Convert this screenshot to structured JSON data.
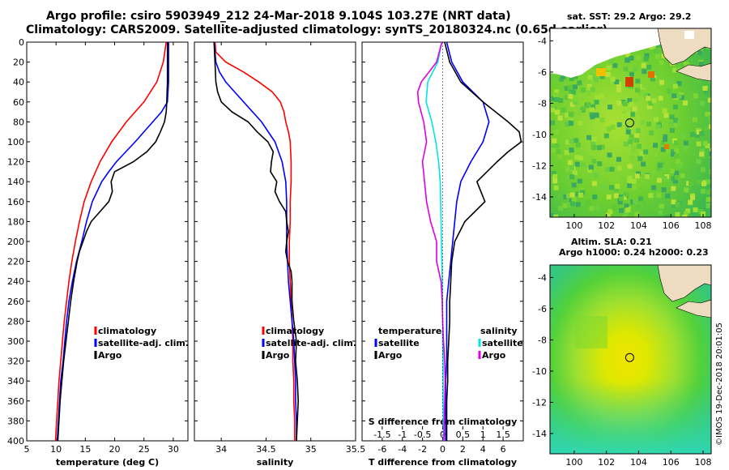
{
  "header": {
    "line1": "Argo profile: csiro 5903949_212 24-Mar-2018 9.104S 103.27E (NRT data)",
    "line2": "Climatology: CARS2009. Satellite-adjusted climatology: synTS_20180324.nc (0.65d earlier)"
  },
  "map1": {
    "title": "sat. SST: 29.2 Argo: 29.2",
    "xticks": [
      "100",
      "102",
      "104",
      "106",
      "108"
    ],
    "yticks": [
      "-4",
      "-6",
      "-8",
      "-10",
      "-12",
      "-14"
    ]
  },
  "map2": {
    "title1": "Altim. SLA: 0.21",
    "title2": "Argo h1000: 0.24 h2000: 0.23",
    "xticks": [
      "100",
      "102",
      "104",
      "106",
      "108"
    ],
    "yticks": [
      "-4",
      "-6",
      "-8",
      "-10",
      "-12",
      "-14"
    ]
  },
  "footer": {
    "credit": "©IMOS 19-Dec-2018 20:01:05"
  },
  "colors": {
    "climatology": "#ff0000",
    "satellite": "#0000ff",
    "argo": "#000000",
    "salinity_satellite": "#00e5e5",
    "salinity_argo": "#e000e0"
  },
  "chart_data": [
    {
      "type": "line",
      "id": "temperature",
      "xlabel": "temperature (deg C)",
      "ylabel": "",
      "xlim": [
        5,
        32.5
      ],
      "ylim": [
        400,
        0
      ],
      "xticks": [
        5,
        10,
        15,
        20,
        25,
        30
      ],
      "xticklabels": [
        "5",
        "10",
        "15",
        "20",
        "25",
        "30"
      ],
      "yticks": [
        0,
        20,
        40,
        60,
        80,
        100,
        120,
        140,
        160,
        180,
        200,
        220,
        240,
        260,
        280,
        300,
        320,
        340,
        360,
        380,
        400
      ],
      "legend": [
        "climatology",
        "satellite-adj. clim.",
        "Argo"
      ],
      "legend_position": "lower-right",
      "series": [
        {
          "name": "climatology",
          "color": "#ff0000",
          "depth": [
            0,
            20,
            40,
            60,
            80,
            100,
            120,
            140,
            160,
            180,
            200,
            220,
            240,
            260,
            280,
            300,
            320,
            340,
            360,
            380,
            400
          ],
          "values": [
            28.8,
            28.3,
            27.2,
            25.0,
            22.0,
            19.5,
            17.5,
            16.0,
            14.8,
            14.0,
            13.3,
            12.7,
            12.2,
            11.8,
            11.4,
            11.1,
            10.8,
            10.5,
            10.3,
            10.1,
            9.9
          ]
        },
        {
          "name": "satellite-adj. clim.",
          "color": "#0000ff",
          "depth": [
            0,
            20,
            40,
            60,
            70,
            80,
            100,
            120,
            130,
            140,
            160,
            180,
            200,
            220,
            240,
            260,
            280,
            300,
            320,
            340,
            360,
            380,
            400
          ],
          "values": [
            29.2,
            29.2,
            29.2,
            29.0,
            28.0,
            26.5,
            23.5,
            20.3,
            19.0,
            17.8,
            16.2,
            15.2,
            14.4,
            13.5,
            12.8,
            12.2,
            11.8,
            11.5,
            11.2,
            10.8,
            10.6,
            10.4,
            10.2
          ]
        },
        {
          "name": "Argo",
          "color": "#000000",
          "depth": [
            0,
            20,
            40,
            60,
            70,
            80,
            90,
            100,
            110,
            120,
            130,
            140,
            150,
            160,
            170,
            180,
            190,
            200,
            210,
            220,
            240,
            260,
            280,
            300,
            320,
            340,
            360,
            380,
            400
          ],
          "values": [
            29.0,
            29.0,
            29.0,
            28.9,
            28.8,
            28.5,
            27.8,
            27.0,
            25.5,
            23.2,
            20.0,
            19.4,
            19.6,
            19.0,
            17.5,
            16.0,
            15.2,
            14.6,
            14.0,
            13.6,
            13.0,
            12.5,
            12.1,
            11.7,
            11.3,
            11.0,
            10.7,
            10.5,
            10.3
          ]
        }
      ]
    },
    {
      "type": "line",
      "id": "salinity",
      "xlabel": "salinity",
      "xlim": [
        33.7,
        35.5
      ],
      "ylim": [
        400,
        0
      ],
      "xticks": [
        34,
        34.5,
        35,
        35.5
      ],
      "xticklabels": [
        "34",
        "34.5",
        "35",
        "35.5"
      ],
      "legend": [
        "climatology",
        "satellite-adj. clim.",
        "Argo"
      ],
      "legend_position": "lower-right",
      "series": [
        {
          "name": "climatology",
          "color": "#ff0000",
          "depth": [
            0,
            10,
            20,
            30,
            40,
            50,
            60,
            70,
            80,
            90,
            100,
            120,
            140,
            160,
            180,
            200,
            220,
            240,
            260,
            280,
            300,
            320,
            340,
            360,
            380,
            400
          ],
          "values": [
            33.93,
            33.94,
            34.05,
            34.25,
            34.42,
            34.57,
            34.66,
            34.7,
            34.72,
            34.75,
            34.77,
            34.78,
            34.78,
            34.77,
            34.77,
            34.76,
            34.76,
            34.77,
            34.78,
            34.79,
            34.8,
            34.8,
            34.81,
            34.81,
            34.82,
            34.82
          ]
        },
        {
          "name": "satellite-adj. clim.",
          "color": "#0000ff",
          "depth": [
            0,
            10,
            20,
            30,
            40,
            50,
            60,
            80,
            100,
            120,
            140,
            160,
            180,
            200,
            220,
            240,
            260,
            280,
            300,
            320,
            340,
            360,
            380,
            400
          ],
          "values": [
            33.92,
            33.93,
            33.94,
            33.98,
            34.05,
            34.15,
            34.25,
            34.45,
            34.6,
            34.68,
            34.72,
            34.73,
            34.73,
            34.73,
            34.74,
            34.75,
            34.77,
            34.79,
            34.81,
            34.82,
            34.83,
            34.83,
            34.84,
            34.84
          ]
        },
        {
          "name": "Argo",
          "color": "#000000",
          "depth": [
            0,
            20,
            40,
            50,
            60,
            70,
            80,
            90,
            100,
            110,
            120,
            130,
            140,
            150,
            160,
            170,
            180,
            190,
            200,
            210,
            220,
            230,
            240,
            260,
            280,
            300,
            320,
            340,
            360,
            380,
            400
          ],
          "values": [
            33.92,
            33.93,
            33.94,
            33.96,
            34.0,
            34.12,
            34.3,
            34.4,
            34.52,
            34.58,
            34.56,
            34.55,
            34.62,
            34.6,
            34.65,
            34.72,
            34.73,
            34.75,
            34.73,
            34.72,
            34.74,
            34.78,
            34.79,
            34.79,
            34.81,
            34.84,
            34.83,
            34.85,
            34.86,
            34.85,
            34.84
          ]
        }
      ]
    },
    {
      "type": "line",
      "id": "difference",
      "xlabel": "T difference from climatology",
      "xlabel_top": "S difference from climatology",
      "xlim_T": [
        -8,
        8
      ],
      "xticks_T": [
        -6,
        -4,
        -2,
        0,
        2,
        4,
        6
      ],
      "xticklabels_T": [
        "-6",
        "-4",
        "-2",
        "0",
        "2",
        "4",
        "6"
      ],
      "xlim_S": [
        -2.0,
        2.0
      ],
      "xticks_S": [
        -1.5,
        -1,
        -0.5,
        0,
        0.5,
        1,
        1.5
      ],
      "xticklabels_S": [
        "-1.5",
        "-1",
        "-0.5",
        "0",
        "0.5",
        "1",
        "1.5"
      ],
      "ylim": [
        400,
        0
      ],
      "legend_temperature": {
        "heading": "temperature",
        "entries": [
          "satellite",
          "Argo"
        ]
      },
      "legend_salinity": {
        "heading": "salinity",
        "entries": [
          "satellite",
          "Argo"
        ]
      },
      "series": [
        {
          "name": "T satellite",
          "axis": "T",
          "color": "#0000ff",
          "depth": [
            0,
            20,
            40,
            60,
            80,
            100,
            120,
            140,
            160,
            180,
            200,
            220,
            240,
            260,
            280,
            300,
            320,
            340,
            360,
            380,
            400
          ],
          "values": [
            0.4,
            0.9,
            2.0,
            4.0,
            4.6,
            4.0,
            2.8,
            1.8,
            1.4,
            1.2,
            1.0,
            0.8,
            0.6,
            0.4,
            0.4,
            0.4,
            0.4,
            0.3,
            0.3,
            0.3,
            0.3
          ]
        },
        {
          "name": "T Argo",
          "axis": "T",
          "color": "#000000",
          "depth": [
            0,
            20,
            40,
            60,
            80,
            90,
            100,
            110,
            120,
            140,
            160,
            180,
            200,
            220,
            240,
            260,
            280,
            300,
            320,
            340,
            360,
            380,
            400
          ],
          "values": [
            0.2,
            0.7,
            1.8,
            4.0,
            6.5,
            7.6,
            7.8,
            6.5,
            5.4,
            3.4,
            4.2,
            2.2,
            1.2,
            0.9,
            0.8,
            0.7,
            0.7,
            0.6,
            0.5,
            0.5,
            0.4,
            0.4,
            0.4
          ]
        },
        {
          "name": "S satellite",
          "axis": "S",
          "color": "#00e5e5",
          "depth": [
            0,
            20,
            40,
            60,
            80,
            100,
            120,
            140,
            160,
            180,
            200,
            220,
            240,
            260,
            280,
            300,
            320,
            340,
            360,
            380,
            400
          ],
          "values": [
            -0.02,
            -0.12,
            -0.37,
            -0.41,
            -0.27,
            -0.17,
            -0.1,
            -0.06,
            -0.05,
            -0.04,
            -0.03,
            -0.02,
            -0.01,
            -0.01,
            0.0,
            0.0,
            0.01,
            0.01,
            0.01,
            0.02,
            0.02
          ]
        },
        {
          "name": "S Argo",
          "axis": "S",
          "color": "#e000e0",
          "depth": [
            0,
            20,
            40,
            50,
            60,
            80,
            100,
            120,
            140,
            160,
            180,
            200,
            220,
            240,
            260,
            280,
            300,
            320,
            340,
            360,
            380,
            400
          ],
          "values": [
            -0.02,
            -0.15,
            -0.53,
            -0.62,
            -0.6,
            -0.47,
            -0.4,
            -0.5,
            -0.45,
            -0.4,
            -0.3,
            -0.15,
            -0.15,
            -0.04,
            -0.01,
            0.0,
            0.02,
            0.05,
            0.06,
            0.05,
            0.04,
            0.03
          ]
        }
      ]
    }
  ]
}
